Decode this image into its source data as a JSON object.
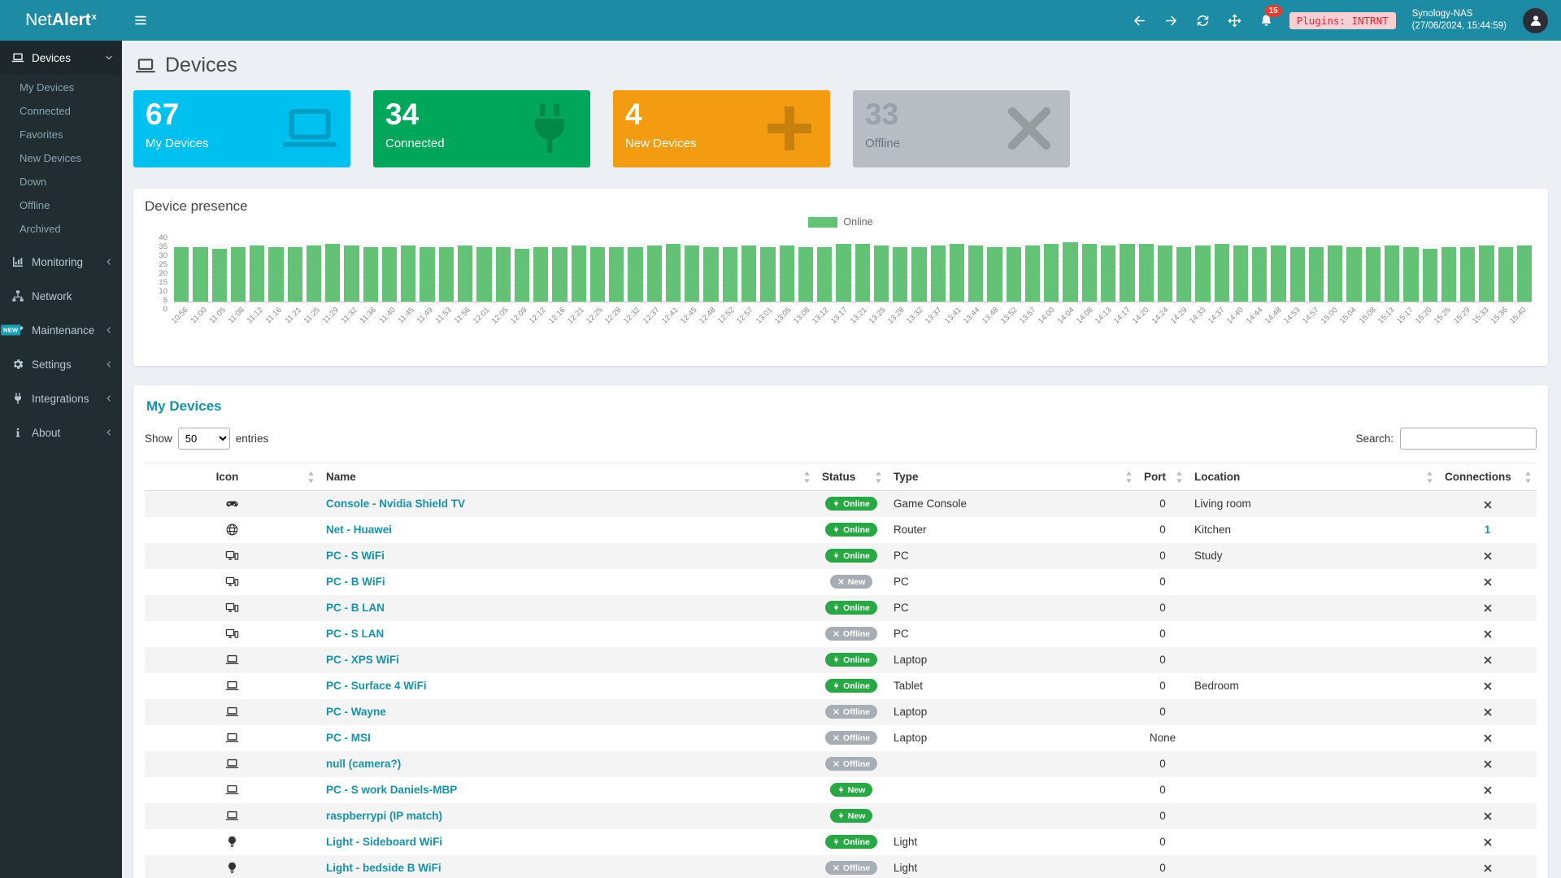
{
  "colors": {
    "navbar": "#1e8ba4",
    "sidebar": "#222d32",
    "accent": "#1792a8",
    "badge_online_green": "#28a745",
    "badge_offline_gray": "#a6adb4",
    "notification_red": "#e23f33",
    "bar_green": "#63c276"
  },
  "topbar": {
    "brand_light": "Net",
    "brand_bold": "Alert",
    "brand_sup": "x",
    "menu_icon": "hamburger-icon",
    "avatar_icon": "user-icon",
    "icons": [
      {
        "name": "arrow-left-icon"
      },
      {
        "name": "arrow-right-icon"
      },
      {
        "name": "sync-icon"
      },
      {
        "name": "move-icon"
      },
      {
        "name": "bell-icon",
        "badge": "15"
      }
    ],
    "plugins_badge": "Plugins: INTRNT",
    "host_name": "Synology-NAS",
    "host_time": "(27/06/2024, 15:44:59)"
  },
  "sidebar": {
    "items": [
      {
        "label": "Devices",
        "icon": "laptop-icon",
        "chevron": "chevron-down-icon",
        "active": true,
        "children": [
          "My Devices",
          "Connected",
          "Favorites",
          "New Devices",
          "Down",
          "Offline",
          "Archived"
        ]
      },
      {
        "label": "Monitoring",
        "icon": "chart-icon",
        "chevron": "chevron-left-icon"
      },
      {
        "label": "Network",
        "icon": "network-icon"
      },
      {
        "label": "Maintenance",
        "icon": "wrench-icon",
        "chevron": "chevron-left-icon",
        "edge_badge": "NEW"
      },
      {
        "label": "Settings",
        "icon": "gear-icon",
        "chevron": "chevron-left-icon"
      },
      {
        "label": "Integrations",
        "icon": "plug-icon",
        "chevron": "chevron-left-icon"
      },
      {
        "label": "About",
        "icon": "info-icon",
        "chevron": "chevron-left-icon"
      }
    ]
  },
  "page": {
    "title": "Devices",
    "title_icon": "laptop-icon"
  },
  "stats": [
    {
      "value": "67",
      "label": "My Devices",
      "icon": "laptop-icon",
      "bg": "#00c0ef",
      "value_color": "#ffffff",
      "label_color": "#ffffff"
    },
    {
      "value": "34",
      "label": "Connected",
      "icon": "plug-icon",
      "bg": "#00a65a",
      "value_color": "#ffffff",
      "label_color": "#ffffff"
    },
    {
      "value": "4",
      "label": "New Devices",
      "icon": "plus-icon",
      "bg": "#f39c12",
      "value_color": "#ffffff",
      "label_color": "#ffffff"
    },
    {
      "value": "33",
      "label": "Offline",
      "icon": "x-icon",
      "bg": "#b8bdc3",
      "value_color": "#9aa0a8",
      "label_color": "#6d747c"
    }
  ],
  "chart_data": {
    "type": "bar",
    "title": "Device presence",
    "legend": [
      {
        "label": "Online",
        "color": "#63c276"
      }
    ],
    "legend_position": "top",
    "grid": true,
    "ylim": [
      0,
      40
    ],
    "yticks": [
      "0",
      "5",
      "10",
      "15",
      "20",
      "25",
      "30",
      "35",
      "40"
    ],
    "categories": [
      "10:56",
      "11:00",
      "11:05",
      "11:08",
      "11:12",
      "11:16",
      "11:21",
      "11:25",
      "11:29",
      "11:32",
      "11:36",
      "11:40",
      "11:45",
      "11:49",
      "11:53",
      "11:56",
      "12:01",
      "12:05",
      "12:09",
      "12:12",
      "12:16",
      "12:21",
      "12:25",
      "12:28",
      "12:32",
      "12:37",
      "12:41",
      "12:45",
      "12:48",
      "12:52",
      "12:57",
      "13:01",
      "13:05",
      "13:08",
      "13:12",
      "13:17",
      "13:21",
      "13:25",
      "13:28",
      "13:32",
      "13:37",
      "13:41",
      "13:44",
      "13:48",
      "13:52",
      "13:57",
      "14:00",
      "14:04",
      "14:08",
      "14:13",
      "14:17",
      "14:20",
      "14:24",
      "14:29",
      "14:33",
      "14:37",
      "14:40",
      "14:44",
      "14:48",
      "14:53",
      "14:57",
      "15:00",
      "15:04",
      "15:08",
      "15:13",
      "15:17",
      "15:20",
      "15:25",
      "15:29",
      "15:33",
      "15:36",
      "15:40"
    ],
    "series": [
      {
        "name": "Online",
        "color": "#63c276",
        "values": [
          34,
          34,
          33,
          34,
          35,
          34,
          34,
          35,
          36,
          35,
          34,
          34,
          35,
          34,
          34,
          35,
          34,
          34,
          33,
          34,
          34,
          35,
          34,
          34,
          34,
          35,
          36,
          35,
          34,
          34,
          35,
          34,
          35,
          34,
          34,
          36,
          36,
          35,
          34,
          34,
          35,
          36,
          35,
          34,
          34,
          35,
          36,
          37,
          36,
          35,
          36,
          36,
          35,
          34,
          35,
          36,
          35,
          34,
          35,
          34,
          34,
          35,
          34,
          34,
          35,
          34,
          33,
          34,
          34,
          35,
          34,
          35
        ]
      }
    ]
  },
  "table": {
    "title": "My Devices",
    "show_label": "Show",
    "page_length": "50",
    "entries_label": "entries",
    "search_label": "Search:",
    "search_value": "",
    "sort_icon": "sort-icon",
    "columns": [
      "Icon",
      "Name",
      "Status",
      "Type",
      "Port",
      "Location",
      "Connections"
    ],
    "rows": [
      {
        "icon": "gamepad-icon",
        "name": "Console - Nvidia Shield TV",
        "status": {
          "label": "Online",
          "variant": "green",
          "icon": "plug-icon"
        },
        "type": "Game Console",
        "port": "0",
        "location": "Living room",
        "connections": {
          "icon": "x-icon"
        }
      },
      {
        "icon": "globe-icon",
        "name": "Net - Huawei",
        "status": {
          "label": "Online",
          "variant": "green",
          "icon": "plug-icon"
        },
        "type": "Router",
        "port": "0",
        "location": "Kitchen",
        "connections": {
          "link": "1"
        }
      },
      {
        "icon": "desktop-icon",
        "name": "PC - S WiFi",
        "status": {
          "label": "Online",
          "variant": "green",
          "icon": "plug-icon"
        },
        "type": "PC",
        "port": "0",
        "location": "Study",
        "connections": {
          "icon": "x-icon"
        }
      },
      {
        "icon": "desktop-icon",
        "name": "PC - B WiFi",
        "status": {
          "label": "New",
          "variant": "gray",
          "icon": "x-icon"
        },
        "type": "PC",
        "port": "0",
        "location": "",
        "connections": {
          "icon": "x-icon"
        }
      },
      {
        "icon": "desktop-icon",
        "name": "PC - B LAN",
        "status": {
          "label": "Online",
          "variant": "green",
          "icon": "plug-icon"
        },
        "type": "PC",
        "port": "0",
        "location": "",
        "connections": {
          "icon": "x-icon"
        }
      },
      {
        "icon": "desktop-icon",
        "name": "PC - S LAN",
        "status": {
          "label": "Offline",
          "variant": "gray",
          "icon": "x-icon"
        },
        "type": "PC",
        "port": "0",
        "location": "",
        "connections": {
          "icon": "x-icon"
        }
      },
      {
        "icon": "laptop-icon",
        "name": "PC - XPS WiFi",
        "status": {
          "label": "Online",
          "variant": "green",
          "icon": "plug-icon"
        },
        "type": "Laptop",
        "port": "0",
        "location": "",
        "connections": {
          "icon": "x-icon"
        }
      },
      {
        "icon": "laptop-icon",
        "name": "PC - Surface 4 WiFi",
        "status": {
          "label": "Online",
          "variant": "green",
          "icon": "plug-icon"
        },
        "type": "Tablet",
        "port": "0",
        "location": "Bedroom",
        "connections": {
          "icon": "x-icon"
        }
      },
      {
        "icon": "laptop-icon",
        "name": "PC - Wayne",
        "status": {
          "label": "Offline",
          "variant": "gray",
          "icon": "x-icon"
        },
        "type": "Laptop",
        "port": "0",
        "location": "",
        "connections": {
          "icon": "x-icon"
        }
      },
      {
        "icon": "laptop-icon",
        "name": "PC - MSI",
        "status": {
          "label": "Offline",
          "variant": "gray",
          "icon": "x-icon"
        },
        "type": "Laptop",
        "port": "None",
        "location": "",
        "connections": {
          "icon": "x-icon"
        }
      },
      {
        "icon": "laptop-icon",
        "name": "null (camera?)",
        "status": {
          "label": "Offline",
          "variant": "gray",
          "icon": "x-icon"
        },
        "type": "",
        "port": "0",
        "location": "",
        "connections": {
          "icon": "x-icon"
        }
      },
      {
        "icon": "laptop-icon",
        "name": "PC - S work Daniels-MBP",
        "status": {
          "label": "New",
          "variant": "green",
          "icon": "plug-icon"
        },
        "type": "",
        "port": "0",
        "location": "",
        "connections": {
          "icon": "x-icon"
        }
      },
      {
        "icon": "laptop-icon",
        "name": "raspberrypi (IP match)",
        "status": {
          "label": "New",
          "variant": "green",
          "icon": "plug-icon"
        },
        "type": "",
        "port": "0",
        "location": "",
        "connections": {
          "icon": "x-icon"
        }
      },
      {
        "icon": "lightbulb-icon",
        "name": "Light - Sideboard WiFi",
        "status": {
          "label": "Online",
          "variant": "green",
          "icon": "plug-icon"
        },
        "type": "Light",
        "port": "0",
        "location": "",
        "connections": {
          "icon": "x-icon"
        }
      },
      {
        "icon": "lightbulb-icon",
        "name": "Light - bedside B WiFi",
        "status": {
          "label": "Offline",
          "variant": "gray",
          "icon": "x-icon"
        },
        "type": "Light",
        "port": "0",
        "location": "",
        "connections": {
          "icon": "x-icon"
        }
      }
    ]
  }
}
